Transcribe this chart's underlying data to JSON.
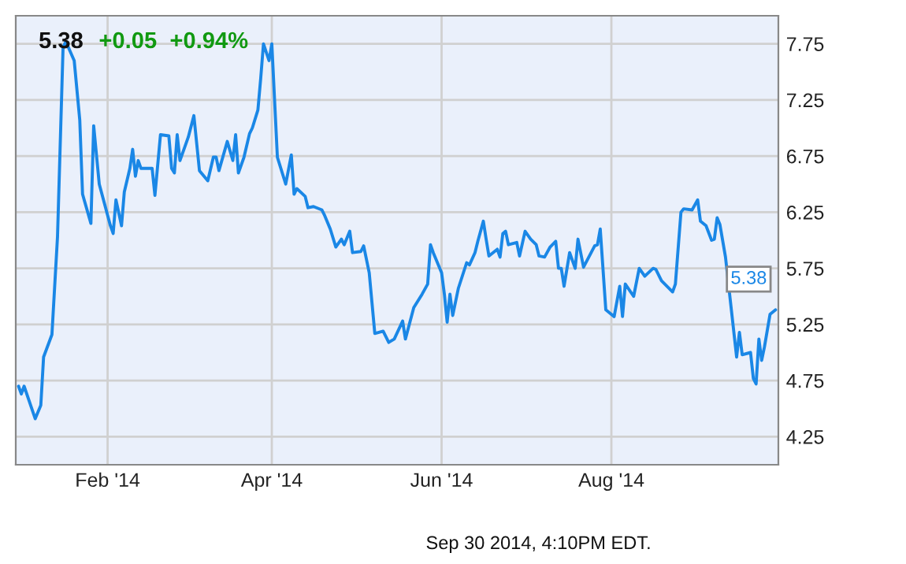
{
  "chart_data": {
    "type": "line",
    "title": "5.38",
    "subtitle": "+0.05  +0.94%",
    "x": [
      "2013-12-31",
      "2014-01-01",
      "2014-01-02",
      "2014-01-06",
      "2014-01-08",
      "2014-01-09",
      "2014-01-12",
      "2014-01-14",
      "2014-01-16",
      "2014-01-17",
      "2014-01-20",
      "2014-01-22",
      "2014-01-23",
      "2014-01-26",
      "2014-01-27",
      "2014-01-29",
      "2014-02-02",
      "2014-02-03",
      "2014-02-04",
      "2014-02-06",
      "2014-02-07",
      "2014-02-09",
      "2014-02-10",
      "2014-02-11",
      "2014-02-12",
      "2014-02-13",
      "2014-02-17",
      "2014-02-18",
      "2014-02-20",
      "2014-02-23",
      "2014-02-24",
      "2014-02-25",
      "2014-02-26",
      "2014-02-27",
      "2014-03-02",
      "2014-03-04",
      "2014-03-06",
      "2014-03-09",
      "2014-03-11",
      "2014-03-12",
      "2014-03-13",
      "2014-03-16",
      "2014-03-18",
      "2014-03-19",
      "2014-03-20",
      "2014-03-22",
      "2014-03-24",
      "2014-03-25",
      "2014-03-27",
      "2014-03-28",
      "2014-03-29",
      "2014-03-31",
      "2014-04-01",
      "2014-04-03",
      "2014-04-06",
      "2014-04-08",
      "2014-04-09",
      "2014-04-10",
      "2014-04-13",
      "2014-04-14",
      "2014-04-16",
      "2014-04-19",
      "2014-04-20",
      "2014-04-22",
      "2014-04-24",
      "2014-04-26",
      "2014-04-27",
      "2014-04-29",
      "2014-04-30",
      "2014-05-03",
      "2014-05-04",
      "2014-05-06",
      "2014-05-08",
      "2014-05-11",
      "2014-05-13",
      "2014-05-15",
      "2014-05-18",
      "2014-05-19",
      "2014-05-22",
      "2014-05-25",
      "2014-05-27",
      "2014-05-28",
      "2014-05-29",
      "2014-06-01",
      "2014-06-02",
      "2014-06-03",
      "2014-06-04",
      "2014-06-05",
      "2014-06-07",
      "2014-06-10",
      "2014-06-11",
      "2014-06-13",
      "2014-06-14",
      "2014-06-16",
      "2014-06-17",
      "2014-06-18",
      "2014-06-21",
      "2014-06-22",
      "2014-06-23",
      "2014-06-24",
      "2014-06-25",
      "2014-06-28",
      "2014-06-29",
      "2014-07-01",
      "2014-07-03",
      "2014-07-05",
      "2014-07-06",
      "2014-07-08",
      "2014-07-10",
      "2014-07-12",
      "2014-07-13",
      "2014-07-14",
      "2014-07-15",
      "2014-07-17",
      "2014-07-19",
      "2014-07-20",
      "2014-07-22",
      "2014-07-26",
      "2014-07-27",
      "2014-07-28",
      "2014-07-30",
      "2014-08-02",
      "2014-08-04",
      "2014-08-05",
      "2014-08-06",
      "2014-08-09",
      "2014-08-11",
      "2014-08-13",
      "2014-08-16",
      "2014-08-17",
      "2014-08-19",
      "2014-08-23",
      "2014-08-24",
      "2014-08-26",
      "2014-08-27",
      "2014-08-30",
      "2014-09-01",
      "2014-09-02",
      "2014-09-04",
      "2014-09-06",
      "2014-09-07",
      "2014-09-08",
      "2014-09-09",
      "2014-09-11",
      "2014-09-15",
      "2014-09-16",
      "2014-09-17",
      "2014-09-20",
      "2014-09-21",
      "2014-09-22",
      "2014-09-23",
      "2014-09-24",
      "2014-09-25",
      "2014-09-27",
      "2014-09-29"
    ],
    "series": [
      {
        "color": "#1a87e6",
        "values": [
          4.7,
          4.63,
          4.7,
          4.41,
          4.53,
          4.96,
          5.16,
          6.03,
          7.72,
          7.77,
          7.6,
          7.07,
          6.41,
          6.15,
          7.02,
          6.5,
          6.13,
          6.06,
          6.36,
          6.13,
          6.43,
          6.64,
          6.81,
          6.57,
          6.71,
          6.64,
          6.64,
          6.4,
          6.94,
          6.93,
          6.64,
          6.6,
          6.94,
          6.71,
          6.92,
          7.11,
          6.62,
          6.53,
          6.74,
          6.74,
          6.62,
          6.88,
          6.71,
          6.94,
          6.6,
          6.74,
          6.95,
          7.0,
          7.16,
          7.44,
          7.75,
          7.6,
          7.75,
          6.74,
          6.5,
          6.76,
          6.41,
          6.46,
          6.39,
          6.29,
          6.3,
          6.27,
          6.22,
          6.1,
          5.94,
          6.01,
          5.96,
          6.08,
          5.89,
          5.9,
          5.95,
          5.71,
          5.17,
          5.19,
          5.09,
          5.12,
          5.28,
          5.12,
          5.4,
          5.52,
          5.61,
          5.96,
          5.89,
          5.71,
          5.52,
          5.27,
          5.52,
          5.33,
          5.57,
          5.8,
          5.78,
          5.89,
          5.99,
          6.17,
          6.01,
          5.86,
          5.92,
          5.85,
          6.06,
          6.08,
          5.96,
          5.98,
          5.86,
          6.08,
          6.01,
          5.96,
          5.86,
          5.85,
          5.94,
          5.99,
          5.75,
          5.75,
          5.59,
          5.89,
          5.75,
          6.01,
          5.76,
          5.95,
          5.96,
          6.1,
          5.38,
          5.32,
          5.59,
          5.32,
          5.61,
          5.5,
          5.75,
          5.68,
          5.75,
          5.74,
          5.64,
          5.54,
          5.61,
          6.25,
          6.28,
          6.27,
          6.36,
          6.17,
          6.13,
          6.0,
          6.01,
          6.2,
          6.14,
          5.85,
          4.96,
          5.18,
          4.98,
          5.0,
          4.77,
          4.72,
          5.12,
          4.93,
          5.05,
          5.34,
          5.38
        ]
      }
    ],
    "xlim": [
      "2013-12-30",
      "2014-09-30"
    ],
    "xticks": [
      {
        "value": "2014-02-01",
        "label": "Feb '14"
      },
      {
        "value": "2014-04-01",
        "label": "Apr '14"
      },
      {
        "value": "2014-06-01",
        "label": "Jun '14"
      },
      {
        "value": "2014-08-01",
        "label": "Aug '14"
      }
    ],
    "ylim": [
      4.0,
      8.0
    ],
    "yticks": [
      4.25,
      4.75,
      5.25,
      5.75,
      6.25,
      6.75,
      7.25,
      7.75
    ],
    "grid": true,
    "annotations": [
      {
        "text": "5.38",
        "x": "2014-09-29",
        "y": 5.38
      },
      "Sep 30 2014, 4:10PM EDT."
    ]
  }
}
